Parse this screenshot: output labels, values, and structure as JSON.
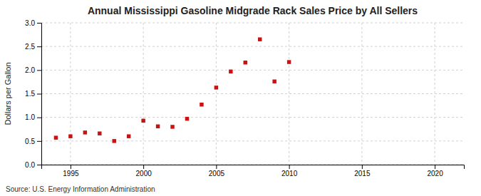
{
  "chart_data": {
    "type": "scatter",
    "title": "Annual Mississippi Gasoline Midgrade Rack Sales Price by All Sellers",
    "y_label": "Dollars per Gallon",
    "annotations": [
      "Source: U.S. Energy Information Administration"
    ],
    "x": [
      1994,
      1995,
      1996,
      1997,
      1998,
      1999,
      2000,
      2001,
      2002,
      2003,
      2004,
      2005,
      2006,
      2007,
      2008,
      2009,
      2010
    ],
    "values": [
      0.57,
      0.6,
      0.68,
      0.66,
      0.5,
      0.6,
      0.93,
      0.81,
      0.8,
      0.97,
      1.27,
      1.63,
      1.97,
      2.16,
      2.65,
      1.76,
      2.17
    ],
    "color": "#cc1111",
    "marker": "square",
    "xlim": [
      1993,
      2022
    ],
    "ylim": [
      0,
      3
    ],
    "xticks": [
      1995,
      2000,
      2005,
      2010,
      2015,
      2020
    ],
    "yticks": [
      {
        "value": 0,
        "label": "0.0"
      },
      0.5,
      {
        "value": 1,
        "label": "1.0"
      },
      1.5,
      {
        "value": 2,
        "label": "2.0"
      },
      2.5,
      {
        "value": 3,
        "label": "3.0"
      }
    ],
    "grid": true
  }
}
